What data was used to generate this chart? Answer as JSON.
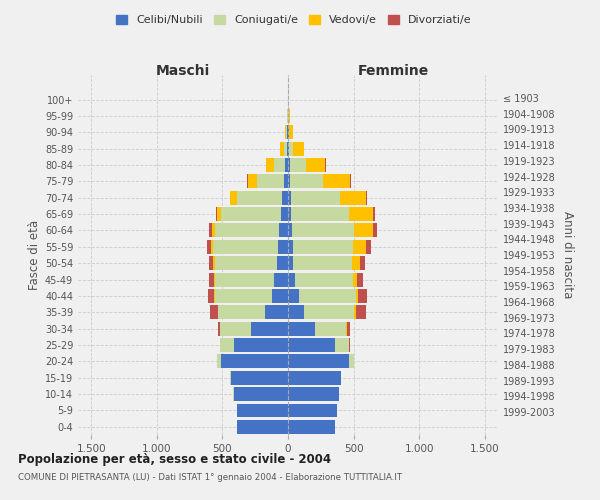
{
  "age_groups": [
    "0-4",
    "5-9",
    "10-14",
    "15-19",
    "20-24",
    "25-29",
    "30-34",
    "35-39",
    "40-44",
    "45-49",
    "50-54",
    "55-59",
    "60-64",
    "65-69",
    "70-74",
    "75-79",
    "80-84",
    "85-89",
    "90-94",
    "95-99",
    "100+"
  ],
  "birth_years": [
    "1999-2003",
    "1994-1998",
    "1989-1993",
    "1984-1988",
    "1979-1983",
    "1974-1978",
    "1969-1973",
    "1964-1968",
    "1959-1963",
    "1954-1958",
    "1949-1953",
    "1944-1948",
    "1939-1943",
    "1934-1938",
    "1929-1933",
    "1924-1928",
    "1919-1923",
    "1914-1918",
    "1909-1913",
    "1904-1908",
    "≤ 1903"
  ],
  "colors": {
    "celibi": "#4472c4",
    "coniugati": "#c5d9a0",
    "vedovi": "#ffc000",
    "divorziati": "#c0504d"
  },
  "males": {
    "celibi": [
      390,
      385,
      415,
      435,
      510,
      415,
      285,
      175,
      125,
      105,
      85,
      75,
      65,
      55,
      45,
      30,
      20,
      10,
      5,
      3,
      1
    ],
    "coniugati": [
      0,
      0,
      2,
      5,
      30,
      100,
      235,
      360,
      435,
      455,
      475,
      495,
      495,
      455,
      345,
      205,
      90,
      20,
      10,
      3,
      0
    ],
    "vedovi": [
      0,
      0,
      0,
      0,
      0,
      0,
      1,
      2,
      3,
      5,
      10,
      15,
      20,
      30,
      50,
      70,
      60,
      30,
      5,
      2,
      0
    ],
    "divorziati": [
      0,
      0,
      0,
      0,
      2,
      5,
      15,
      55,
      50,
      40,
      35,
      30,
      20,
      10,
      5,
      5,
      0,
      0,
      0,
      0,
      0
    ]
  },
  "females": {
    "celibi": [
      360,
      375,
      390,
      400,
      465,
      355,
      205,
      125,
      85,
      55,
      40,
      35,
      30,
      25,
      20,
      15,
      15,
      10,
      5,
      2,
      0
    ],
    "coniugati": [
      0,
      0,
      2,
      5,
      35,
      110,
      240,
      380,
      430,
      440,
      450,
      460,
      470,
      440,
      375,
      255,
      120,
      30,
      5,
      2,
      0
    ],
    "vedovi": [
      0,
      0,
      0,
      0,
      1,
      2,
      5,
      10,
      20,
      30,
      60,
      100,
      150,
      180,
      200,
      200,
      150,
      80,
      30,
      8,
      2
    ],
    "divorziati": [
      0,
      0,
      0,
      0,
      2,
      5,
      20,
      80,
      70,
      45,
      40,
      40,
      30,
      20,
      10,
      10,
      5,
      0,
      0,
      0,
      0
    ]
  },
  "xlim": 1600,
  "xtick_positions": [
    -1500,
    -1000,
    -500,
    0,
    500,
    1000,
    1500
  ],
  "xtick_labels": [
    "1.500",
    "1.000",
    "500",
    "0",
    "500",
    "1.000",
    "1.500"
  ],
  "title": "Popolazione per età, sesso e stato civile - 2004",
  "subtitle": "COMUNE DI PIETRASANTA (LU) - Dati ISTAT 1° gennaio 2004 - Elaborazione TUTTITALIA.IT",
  "ylabel_left": "Fasce di età",
  "ylabel_right": "Anni di nascita",
  "header_left": "Maschi",
  "header_right": "Femmine",
  "legend_labels": [
    "Celibi/Nubili",
    "Coniugati/e",
    "Vedovi/e",
    "Divorziati/e"
  ],
  "bg_color": "#f0f0f0",
  "bar_height": 0.85
}
